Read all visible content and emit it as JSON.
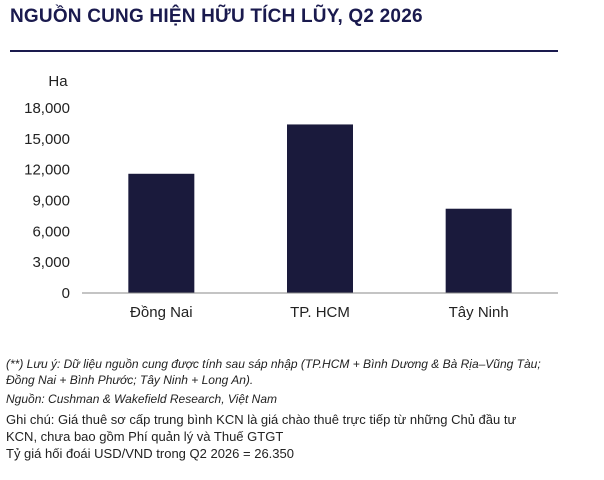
{
  "title": "NGUỒN CUNG HIỆN HỮU TÍCH LŨY, Q2 2026",
  "chart_data": {
    "type": "bar",
    "ylabel": "Ha",
    "categories": [
      "Đồng Nai",
      "TP. HCM",
      "Tây Ninh"
    ],
    "values": [
      11600,
      16400,
      8200
    ],
    "ylim": [
      0,
      18000
    ],
    "yticks": [
      "0",
      "3,000",
      "6,000",
      "9,000",
      "12,000",
      "15,000",
      "18,000"
    ],
    "ytick_values": [
      0,
      3000,
      6000,
      9000,
      12000,
      15000,
      18000
    ],
    "bar_color": "#1a1a3c",
    "grid": false,
    "legend": "none"
  },
  "notes": {
    "note1_line1": "(**) Lưu ý: Dữ liệu nguồn cung được tính sau sáp nhập (TP.HCM + Bình Dương & Bà Rịa–Vũng Tàu;",
    "note1_line2": "Đồng Nai + Bình Phước; Tây Ninh + Long An).",
    "source": "Nguồn: Cushman & Wakefield Research, Việt Nam",
    "ghichu_line1": "Ghi chú: Giá thuê sơ cấp trung bình KCN là giá chào thuê trực tiếp từ những Chủ đầu tư",
    "ghichu_line2": "KCN, chưa bao gồm Phí quản lý và Thuế GTGT",
    "ghichu_line3": "Tỷ giá hối đoái USD/VND trong Q2 2026 = 26.350"
  }
}
